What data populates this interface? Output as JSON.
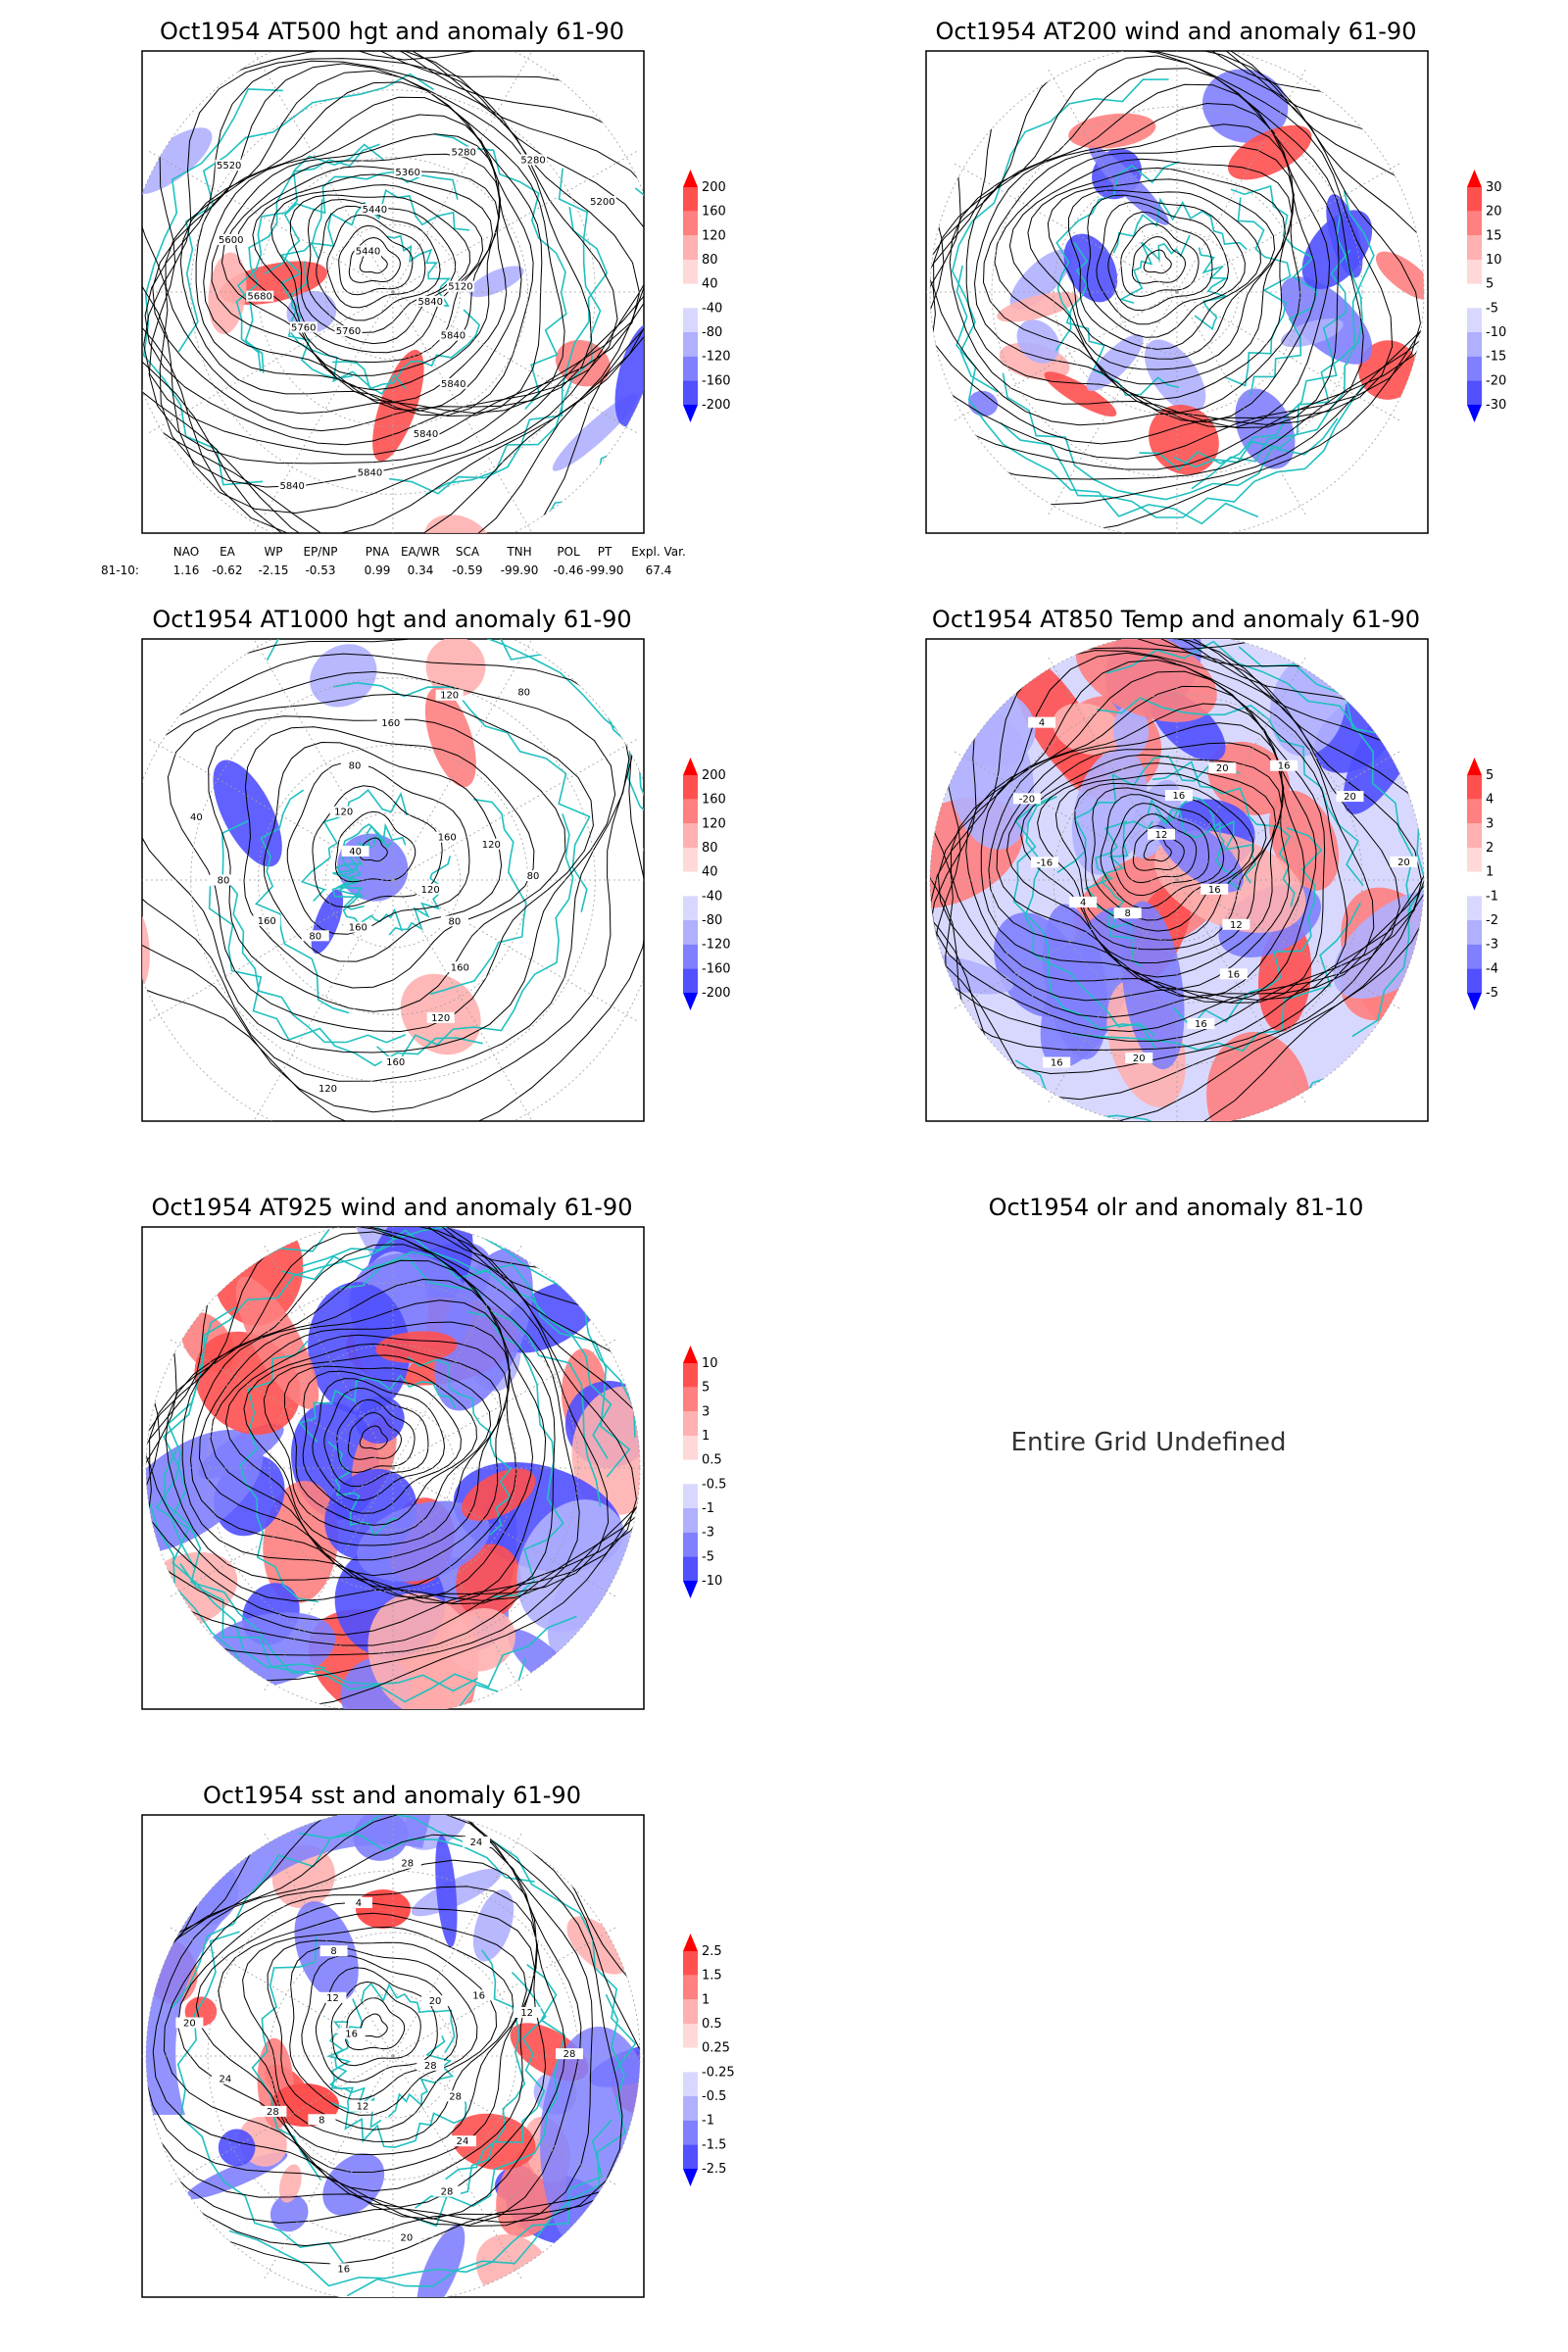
{
  "chart_data": [
    {
      "type": "heatmap",
      "title": "Oct1954 AT500 hgt and anomaly 61-90",
      "colorbar": [
        "200",
        "160",
        "120",
        "80",
        "40",
        "-40",
        "-80",
        "-120",
        "-160",
        "-200"
      ],
      "contour_labels": [
        "5840",
        "5840",
        "5840",
        "5840",
        "5840",
        "5840",
        "5760",
        "5760",
        "5680",
        "5600",
        "5520",
        "5440",
        "5440",
        "5360",
        "5280",
        "5280",
        "5200",
        "5120"
      ],
      "teleconnections": {
        "names": [
          "NAO",
          "EA",
          "WP",
          "EP/NP",
          "PNA",
          "EA/WR",
          "SCA",
          "TNH",
          "POL",
          "PT",
          "Expl. Var."
        ],
        "row_label": "81-10:",
        "values": [
          "1.16",
          "-0.62",
          "-2.15",
          "-0.53",
          "0.99",
          "0.34",
          "-0.59",
          "-99.90",
          "-0.46",
          "-99.90",
          "67.4"
        ]
      }
    },
    {
      "type": "heatmap",
      "title": "Oct1954 AT200 wind and anomaly 61-90",
      "colorbar": [
        "30",
        "20",
        "15",
        "10",
        "5",
        "-5",
        "-10",
        "-15",
        "-20",
        "-30"
      ]
    },
    {
      "type": "heatmap",
      "title": "Oct1954 AT1000 hgt and anomaly 61-90",
      "colorbar": [
        "200",
        "160",
        "120",
        "80",
        "40",
        "-40",
        "-80",
        "-120",
        "-160",
        "-200"
      ],
      "contour_labels": [
        "120",
        "80",
        "160",
        "120",
        "160",
        "120",
        "160",
        "80",
        "160",
        "80",
        "40",
        "40",
        "120",
        "80",
        "160",
        "120",
        "80",
        "160",
        "120",
        "80"
      ]
    },
    {
      "type": "heatmap",
      "title": "Oct1954 AT850 Temp and anomaly 61-90",
      "colorbar": [
        "5",
        "4",
        "3",
        "2",
        "1",
        "-1",
        "-2",
        "-3",
        "-4",
        "-5"
      ],
      "contour_labels": [
        "16",
        "12",
        "16",
        "16",
        "20",
        "16",
        "8",
        "4",
        "-16",
        "-20",
        "4",
        "12",
        "16",
        "20",
        "16",
        "20",
        "20"
      ]
    },
    {
      "type": "heatmap",
      "title": "Oct1954 AT925 wind and anomaly 61-90",
      "colorbar": [
        "10",
        "5",
        "3",
        "1",
        "0.5",
        "-0.5",
        "-1",
        "-3",
        "-5",
        "-10"
      ]
    },
    {
      "type": "heatmap",
      "title": "Oct1954 olr and anomaly 81-10",
      "message": "Entire Grid Undefined"
    },
    {
      "type": "heatmap",
      "title": "Oct1954 sst and anomaly 61-90",
      "colorbar": [
        "2.5",
        "1.5",
        "1",
        "0.5",
        "0.25",
        "-0.25",
        "-0.5",
        "-1",
        "-1.5",
        "-2.5"
      ],
      "contour_labels": [
        "28",
        "28",
        "24",
        "28",
        "20",
        "16",
        "12",
        "8",
        "28",
        "24",
        "20",
        "16",
        "12",
        "8",
        "4",
        "28",
        "24",
        "20",
        "16",
        "12",
        "28"
      ]
    }
  ],
  "colors": {
    "land": "#20c0c0",
    "contour": "#000000",
    "grid": "#a0a0a0",
    "scale": [
      "#ff0000",
      "#ff5050",
      "#ff8080",
      "#ffb0b0",
      "#ffd8d8",
      "#ffffff",
      "#d8d8ff",
      "#b0b0ff",
      "#8080ff",
      "#5050ff",
      "#0000ff"
    ]
  }
}
